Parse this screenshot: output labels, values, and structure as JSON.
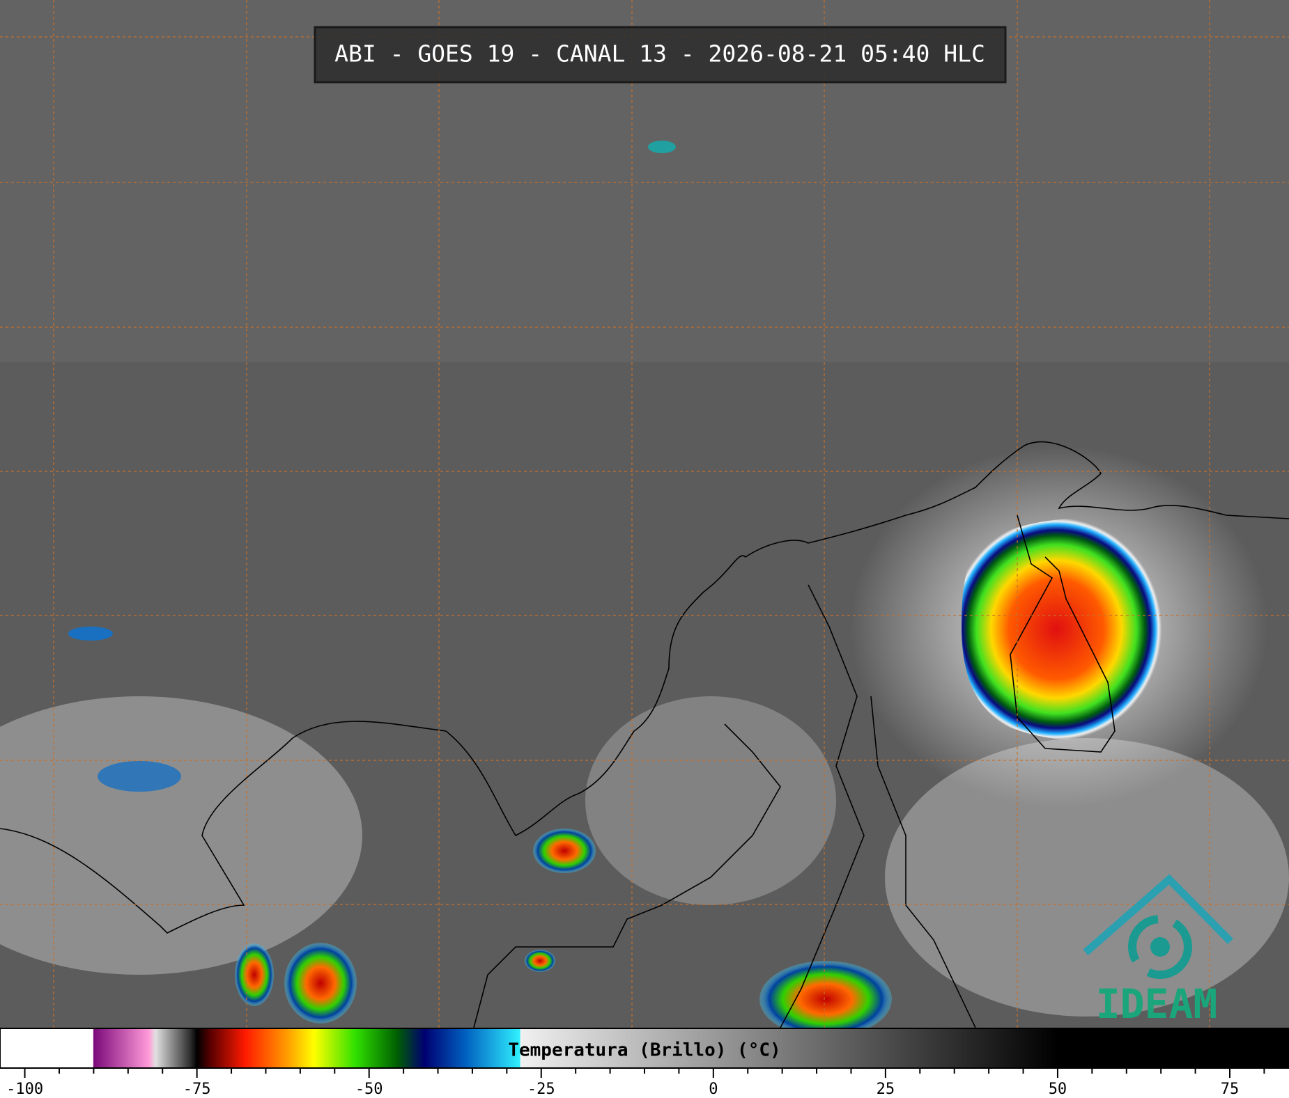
{
  "title": "ABI - GOES 19 - CANAL 13 - 2026-08-21 05:40 HLC",
  "logo": "IDEAM",
  "colorbar": {
    "label": "Temperatura (Brillo) (°C)",
    "range": [
      -103.6,
      83.6
    ],
    "ticks": [
      -100,
      -75,
      -50,
      -25,
      0,
      25,
      50,
      75
    ],
    "minor_ticks": [
      -95,
      -90,
      -85,
      -80,
      -70,
      -65,
      -60,
      -55,
      -45,
      -40,
      -35,
      -30,
      -20,
      -15,
      -10,
      -5,
      5,
      10,
      15,
      20,
      30,
      35,
      40,
      45,
      55,
      60,
      65,
      70,
      80
    ],
    "colors": [
      [
        -103.6,
        "#ffffff"
      ],
      [
        -90.1,
        "#ffffff"
      ],
      [
        -90,
        "#7a0a7a"
      ],
      [
        -82,
        "#ff9ad8"
      ],
      [
        -81,
        "#e0e0e0"
      ],
      [
        -76,
        "#303030"
      ],
      [
        -75,
        "#000000"
      ],
      [
        -73,
        "#5a0000"
      ],
      [
        -68,
        "#ff1a00"
      ],
      [
        -62,
        "#ff9a00"
      ],
      [
        -58,
        "#ffff00"
      ],
      [
        -52,
        "#30e000"
      ],
      [
        -46,
        "#006000"
      ],
      [
        -42,
        "#000070"
      ],
      [
        -36,
        "#0060c0"
      ],
      [
        -28.1,
        "#30f0ff"
      ],
      [
        -28,
        "#f0f0f0"
      ],
      [
        50,
        "#000000"
      ],
      [
        83.6,
        "#000000"
      ]
    ]
  }
}
